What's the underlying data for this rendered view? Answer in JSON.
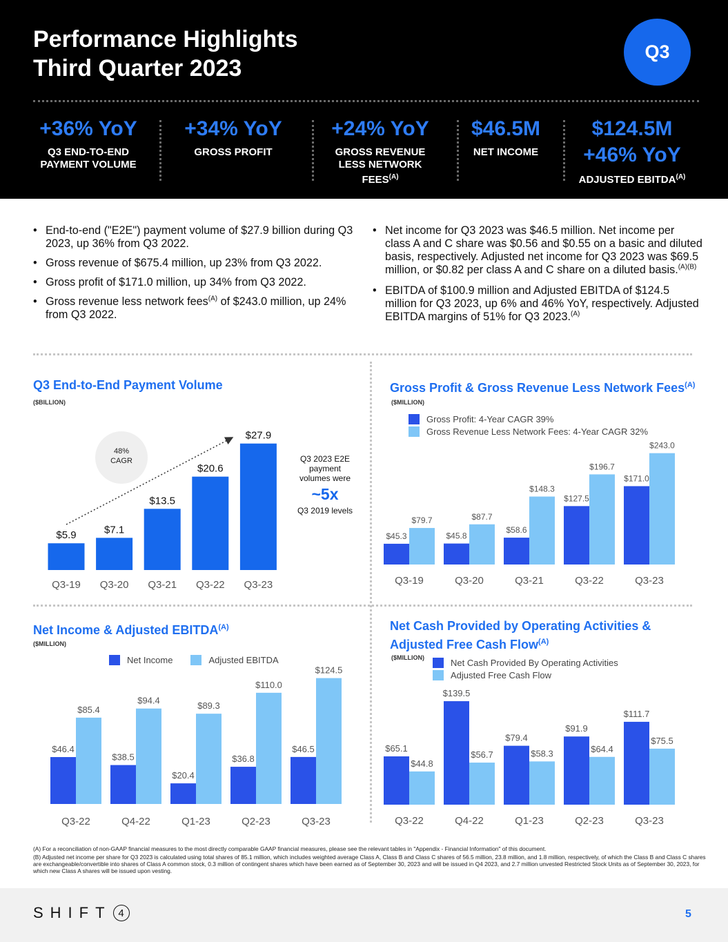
{
  "header": {
    "title_line1": "Performance Highlights",
    "title_line2": "Third Quarter 2023",
    "badge": "Q3",
    "kpis": [
      {
        "value": "+36% YoY",
        "label_line1": "Q3 END-TO-END",
        "label_line2": "PAYMENT VOLUME"
      },
      {
        "value": "+34% YoY",
        "label_line1": "GROSS PROFIT"
      },
      {
        "value": "+24% YoY",
        "label_line1": "GROSS REVENUE",
        "label_line2": "LESS NETWORK",
        "label_line3": "FEES",
        "note": "(A)"
      },
      {
        "value": "$46.5M",
        "label_line1": "NET INCOME"
      },
      {
        "value": "$124.5M",
        "value2": "+46% YoY",
        "label_line1": "ADJUSTED EBITDA",
        "note": "(A)"
      }
    ]
  },
  "bullets_left": [
    "End-to-end (\"E2E\") payment volume of $27.9 billion during Q3 2023, up 36% from Q3 2022.",
    "Gross revenue of $675.4 million, up 23% from Q3 2022.",
    "Gross profit of $171.0 million, up 34% from Q3 2022."
  ],
  "bullet_left_4": {
    "pre": "Gross revenue less network fees",
    "sup": "(A)",
    "post": " of $243.0 million, up 24% from Q3 2022."
  },
  "bullets_right": [
    {
      "text": "Net income for Q3 2023 was $46.5 million. Net income per class A and C share was $0.56 and $0.55 on a basic and diluted basis, respectively. Adjusted net income for Q3 2023 was $69.5 million, or $0.82 per class A and C share on a diluted basis.",
      "sup": "(A)(B)"
    },
    {
      "text": "EBITDA of $100.9 million and Adjusted EBITDA of $124.5 million for Q3 2023, up 6% and 46% YoY, respectively. Adjusted EBITDA margins of 51% for Q3 2023.",
      "sup": "(A)"
    }
  ],
  "chart1_labels": {
    "title": "Q3 End-to-End Payment Volume",
    "unit": "($BILLION)",
    "cagr_line1": "48%",
    "cagr_line2": "CAGR",
    "callout_line1": "Q3 2023 E2E",
    "callout_line2": "payment",
    "callout_line3": "volumes were",
    "callout_big": "~5x",
    "callout_line4": "Q3 2019 levels"
  },
  "chart2_labels": {
    "title": "Gross Profit & Gross Revenue Less Network Fees",
    "sup": "(A)",
    "unit": "($MILLION)"
  },
  "chart3_labels": {
    "title": "Net Income & Adjusted EBITDA",
    "sup": "(A)",
    "unit": "($MILLION)"
  },
  "chart4_labels": {
    "title_line1": "Net Cash Provided by Operating Activities &",
    "title_line2": "Adjusted Free Cash Flow",
    "sup": "(A)",
    "unit": "($MILLION)"
  },
  "chart_data": [
    {
      "type": "bar",
      "title": "Q3 End-to-End Payment Volume",
      "ylabel": "($BILLION)",
      "categories": [
        "Q3-19",
        "Q3-20",
        "Q3-21",
        "Q3-22",
        "Q3-23"
      ],
      "series": [
        {
          "name": "E2E Payment Volume",
          "values": [
            5.9,
            7.1,
            13.5,
            20.6,
            27.9
          ],
          "labels": [
            "$5.9",
            "$7.1",
            "$13.5",
            "$20.6",
            "$27.9"
          ],
          "color": "#1668ec"
        }
      ],
      "annotation": "48% CAGR"
    },
    {
      "type": "bar",
      "title": "Gross Profit & Gross Revenue Less Network Fees",
      "ylabel": "($MILLION)",
      "categories": [
        "Q3-19",
        "Q3-20",
        "Q3-21",
        "Q3-22",
        "Q3-23"
      ],
      "series": [
        {
          "name": "Gross Profit: 4-Year CAGR 39%",
          "values": [
            45.3,
            45.8,
            58.6,
            127.5,
            171.0
          ],
          "labels": [
            "$45.3",
            "$45.8",
            "$58.6",
            "$127.5",
            "$171.0"
          ],
          "color": "#2a52e8"
        },
        {
          "name": "Gross Revenue Less Network Fees: 4-Year CAGR 32%",
          "values": [
            79.7,
            87.7,
            148.3,
            196.7,
            243.0
          ],
          "labels": [
            "$79.7",
            "$87.7",
            "$148.3",
            "$196.7",
            "$243.0"
          ],
          "color": "#7fc6f7"
        }
      ]
    },
    {
      "type": "bar",
      "title": "Net Income & Adjusted EBITDA",
      "ylabel": "($MILLION)",
      "categories": [
        "Q3-22",
        "Q4-22",
        "Q1-23",
        "Q2-23",
        "Q3-23"
      ],
      "series": [
        {
          "name": "Net Income",
          "values": [
            46.4,
            38.5,
            20.4,
            36.8,
            46.5
          ],
          "labels": [
            "$46.4",
            "$38.5",
            "$20.4",
            "$36.8",
            "$46.5"
          ],
          "color": "#2a52e8"
        },
        {
          "name": "Adjusted EBITDA",
          "values": [
            85.4,
            94.4,
            89.3,
            110.0,
            124.5
          ],
          "labels": [
            "$85.4",
            "$94.4",
            "$89.3",
            "$110.0",
            "$124.5"
          ],
          "color": "#7fc6f7"
        }
      ]
    },
    {
      "type": "bar",
      "title": "Net Cash Provided by Operating Activities & Adjusted Free Cash Flow",
      "ylabel": "($MILLION)",
      "categories": [
        "Q3-22",
        "Q4-22",
        "Q1-23",
        "Q2-23",
        "Q3-23"
      ],
      "series": [
        {
          "name": "Net Cash Provided By Operating Activities",
          "values": [
            65.1,
            139.5,
            79.4,
            91.9,
            111.7
          ],
          "labels": [
            "$65.1",
            "$139.5",
            "$79.4",
            "$91.9",
            "$111.7"
          ],
          "color": "#2a52e8"
        },
        {
          "name": "Adjusted Free Cash Flow",
          "values": [
            44.8,
            56.7,
            58.3,
            64.4,
            75.5
          ],
          "labels": [
            "$44.8",
            "$56.7",
            "$58.3",
            "$64.4",
            "$75.5"
          ],
          "color": "#7fc6f7"
        }
      ]
    }
  ],
  "footnotes": {
    "a": "(A) For a reconciliation of non-GAAP financial measures to the most directly comparable GAAP financial measures, please see the relevant tables in \"Appendix - Financial Information\" of this document.",
    "b": "(B) Adjusted net income per share for Q3 2023 is calculated using total shares of 85.1 million, which includes weighted average Class A, Class B and Class C shares of 56.5 million, 23.8 million, and 1.8 million, respectively, of which the Class B and Class C shares are exchangeable/convertible into shares of Class A common stock, 0.3 million of contingent shares which have been earned as of September 30, 2023 and will be issued in Q4 2023, and 2.7 million unvested Restricted Stock Units as of September 30, 2023, for which new Class A shares will be issued upon vesting."
  },
  "footer": {
    "logo_text": "SHIFT",
    "logo_digit": "4",
    "page": "5"
  }
}
